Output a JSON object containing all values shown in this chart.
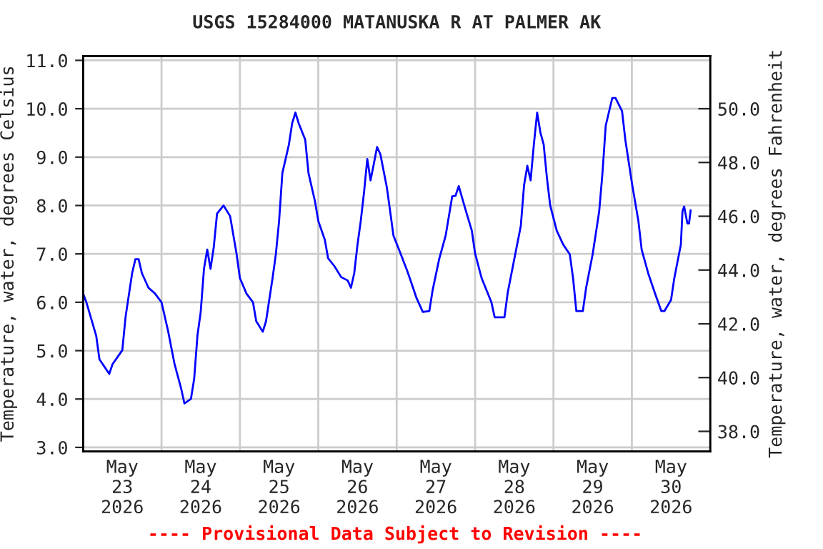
{
  "chart_data": {
    "type": "line",
    "title": "USGS 15284000 MATANUSKA R AT PALMER AK",
    "ylabel": "Temperature, water, degrees Celsius",
    "y2label": "Temperature, water, degrees Fahrenheit",
    "annotations": [
      "---- Provisional Data Subject to Revision ----"
    ],
    "series": [
      {
        "color": "#0000ff",
        "x": [
          "2026-05-23T00:00",
          "2026-05-23T01:00",
          "2026-05-23T04:00",
          "2026-05-23T05:00",
          "2026-05-23T08:00",
          "2026-05-23T09:00",
          "2026-05-23T12:00",
          "2026-05-23T13:00",
          "2026-05-23T15:00",
          "2026-05-23T16:00",
          "2026-05-23T17:00",
          "2026-05-23T18:00",
          "2026-05-23T20:00",
          "2026-05-23T22:00",
          "2026-05-24T00:00",
          "2026-05-24T02:00",
          "2026-05-24T04:00",
          "2026-05-24T06:00",
          "2026-05-24T07:00",
          "2026-05-24T09:00",
          "2026-05-24T10:00",
          "2026-05-24T11:00",
          "2026-05-24T12:00",
          "2026-05-24T13:00",
          "2026-05-24T14:00",
          "2026-05-24T15:00",
          "2026-05-24T16:00",
          "2026-05-24T17:00",
          "2026-05-24T19:00",
          "2026-05-24T21:00",
          "2026-05-24T23:00",
          "2026-05-25T00:00",
          "2026-05-25T02:00",
          "2026-05-25T04:00",
          "2026-05-25T05:00",
          "2026-05-25T07:00",
          "2026-05-25T08:00",
          "2026-05-25T10:00",
          "2026-05-25T11:00",
          "2026-05-25T12:00",
          "2026-05-25T13:00",
          "2026-05-25T15:00",
          "2026-05-25T16:00",
          "2026-05-25T17:00",
          "2026-05-25T18:00",
          "2026-05-25T20:00",
          "2026-05-25T21:00",
          "2026-05-25T23:00",
          "2026-05-26T00:00",
          "2026-05-26T02:00",
          "2026-05-26T03:00",
          "2026-05-26T05:00",
          "2026-05-26T07:00",
          "2026-05-26T09:00",
          "2026-05-26T10:00",
          "2026-05-26T11:00",
          "2026-05-26T12:00",
          "2026-05-26T13:00",
          "2026-05-26T14:00",
          "2026-05-26T15:00",
          "2026-05-26T16:00",
          "2026-05-26T17:00",
          "2026-05-26T18:00",
          "2026-05-26T19:00",
          "2026-05-26T21:00",
          "2026-05-26T22:00",
          "2026-05-26T23:00",
          "2026-05-27T01:00",
          "2026-05-27T03:00",
          "2026-05-27T04:00",
          "2026-05-27T06:00",
          "2026-05-27T08:00",
          "2026-05-27T10:00",
          "2026-05-27T11:00",
          "2026-05-27T13:00",
          "2026-05-27T15:00",
          "2026-05-27T17:00",
          "2026-05-27T18:00",
          "2026-05-27T19:00",
          "2026-05-27T21:00",
          "2026-05-27T23:00",
          "2026-05-28T00:00",
          "2026-05-28T02:00",
          "2026-05-28T05:00",
          "2026-05-28T06:00",
          "2026-05-28T09:00",
          "2026-05-28T10:00",
          "2026-05-28T12:00",
          "2026-05-28T14:00",
          "2026-05-28T15:00",
          "2026-05-28T16:00",
          "2026-05-28T17:00",
          "2026-05-28T18:00",
          "2026-05-28T19:00",
          "2026-05-28T20:00",
          "2026-05-28T21:00",
          "2026-05-28T22:00",
          "2026-05-28T23:00",
          "2026-05-29T01:00",
          "2026-05-29T03:00",
          "2026-05-29T05:00",
          "2026-05-29T06:00",
          "2026-05-29T07:00",
          "2026-05-29T09:00",
          "2026-05-29T10:00",
          "2026-05-29T12:00",
          "2026-05-29T14:00",
          "2026-05-29T15:00",
          "2026-05-29T16:00",
          "2026-05-29T18:00",
          "2026-05-29T19:00",
          "2026-05-29T21:00",
          "2026-05-29T22:00",
          "2026-05-30T00:00",
          "2026-05-30T02:00",
          "2026-05-30T03:00",
          "2026-05-30T05:00",
          "2026-05-30T07:00",
          "2026-05-30T09:00",
          "2026-05-30T10:00",
          "2026-05-30T12:00",
          "2026-05-30T13:00",
          "2026-05-30T15:00",
          "2026-05-30T15:30",
          "2026-05-30T16:00",
          "2026-05-30T17:00",
          "2026-05-30T17:30",
          "2026-05-30T18:00"
        ],
        "values": [
          6.18,
          6.0,
          5.31,
          4.82,
          4.52,
          4.72,
          5.01,
          5.7,
          6.6,
          6.89,
          6.89,
          6.6,
          6.3,
          6.18,
          6.0,
          5.41,
          4.72,
          4.22,
          3.91,
          4.0,
          4.42,
          5.31,
          5.8,
          6.69,
          7.09,
          6.69,
          7.14,
          7.83,
          8.0,
          7.78,
          6.99,
          6.5,
          6.18,
          6.0,
          5.61,
          5.39,
          5.61,
          6.5,
          6.99,
          7.68,
          8.67,
          9.26,
          9.7,
          9.92,
          9.7,
          9.36,
          8.67,
          8.08,
          7.68,
          7.29,
          6.91,
          6.74,
          6.52,
          6.45,
          6.3,
          6.6,
          7.19,
          7.68,
          8.27,
          8.96,
          8.52,
          8.86,
          9.21,
          9.06,
          8.37,
          7.88,
          7.38,
          7.04,
          6.69,
          6.5,
          6.1,
          5.8,
          5.82,
          6.25,
          6.89,
          7.38,
          8.19,
          8.2,
          8.4,
          7.93,
          7.48,
          7.01,
          6.5,
          6.0,
          5.69,
          5.69,
          6.2,
          6.89,
          7.58,
          8.42,
          8.82,
          8.52,
          9.26,
          9.92,
          9.51,
          9.26,
          8.57,
          8.0,
          7.48,
          7.19,
          6.99,
          6.5,
          5.82,
          5.82,
          6.3,
          6.99,
          7.88,
          8.67,
          9.65,
          10.22,
          10.22,
          9.95,
          9.36,
          8.47,
          7.68,
          7.09,
          6.6,
          6.2,
          5.82,
          5.82,
          6.05,
          6.5,
          7.19,
          7.88,
          7.98,
          7.63,
          7.63,
          7.9
        ]
      }
    ],
    "xlim": [
      "2026-05-23T00:00",
      "2026-05-31T00:00"
    ],
    "xticks": [
      {
        "value": "2026-05-24T00:00",
        "label": null
      },
      {
        "value": "2026-05-25T00:00",
        "label": null
      },
      {
        "value": "2026-05-26T00:00",
        "label": null
      },
      {
        "value": "2026-05-27T00:00",
        "label": null
      },
      {
        "value": "2026-05-28T00:00",
        "label": null
      },
      {
        "value": "2026-05-29T00:00",
        "label": null
      },
      {
        "value": "2026-05-30T00:00",
        "label": null
      },
      {
        "value": "2026-05-23T12:00",
        "label": "May\n23\n2026"
      },
      {
        "value": "2026-05-24T12:00",
        "label": "May\n24\n2026"
      },
      {
        "value": "2026-05-25T12:00",
        "label": "May\n25\n2026"
      },
      {
        "value": "2026-05-26T12:00",
        "label": "May\n26\n2026"
      },
      {
        "value": "2026-05-27T12:00",
        "label": "May\n27\n2026"
      },
      {
        "value": "2026-05-28T12:00",
        "label": "May\n28\n2026"
      },
      {
        "value": "2026-05-29T12:00",
        "label": "May\n29\n2026"
      },
      {
        "value": "2026-05-30T12:00",
        "label": "May\n30\n2026"
      }
    ],
    "ylim": [
      2.92,
      11.09
    ],
    "yticks": [
      {
        "value": 3,
        "label": "3.0"
      },
      {
        "value": 4,
        "label": "4.0"
      },
      {
        "value": 5,
        "label": "5.0"
      },
      {
        "value": 6,
        "label": "6.0"
      },
      {
        "value": 7,
        "label": "7.0"
      },
      {
        "value": 8,
        "label": "8.0"
      },
      {
        "value": 9,
        "label": "9.0"
      },
      {
        "value": 10,
        "label": "10.0"
      },
      {
        "value": 11,
        "label": "11.0"
      }
    ],
    "y2lim": [
      37.26,
      51.96
    ],
    "y2ticks": [
      {
        "value": 38,
        "label": "38.0"
      },
      {
        "value": 40,
        "label": "40.0"
      },
      {
        "value": 42,
        "label": "42.0"
      },
      {
        "value": 44,
        "label": "44.0"
      },
      {
        "value": 46,
        "label": "46.0"
      },
      {
        "value": 48,
        "label": "48.0"
      },
      {
        "value": 50,
        "label": "50.0"
      }
    ],
    "grid": true
  }
}
